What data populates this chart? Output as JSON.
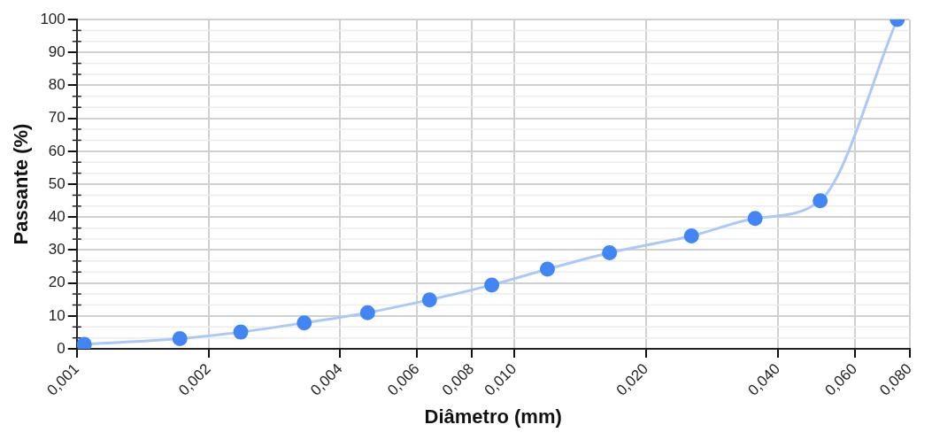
{
  "chart_data": {
    "type": "line",
    "xlabel": "Diâmetro (mm)",
    "ylabel": "Passante (%)",
    "log": "x",
    "x": [
      0.00104,
      0.00172,
      0.00237,
      0.00331,
      0.00462,
      0.0064,
      0.00888,
      0.0119,
      0.0165,
      0.0254,
      0.0355,
      0.05,
      0.075
    ],
    "series": [
      {
        "color": "#4285f4",
        "values": [
          1.4,
          3.1,
          5.1,
          7.9,
          11,
          14.9,
          19.4,
          24.2,
          29.2,
          34.3,
          39.6,
          45,
          100
        ]
      }
    ],
    "xlim": [
      0.001,
      0.08
    ],
    "xticks": [
      {
        "value": 0.001,
        "label": "0,001"
      },
      {
        "value": 0.002,
        "label": "0,002"
      },
      {
        "value": 0.004,
        "label": "0,004"
      },
      {
        "value": 0.006,
        "label": "0,006"
      },
      {
        "value": 0.008,
        "label": "0,008"
      },
      {
        "value": 0.01,
        "label": "0,010"
      },
      {
        "value": 0.02,
        "label": "0,020"
      },
      {
        "value": 0.04,
        "label": "0,040"
      },
      {
        "value": 0.06,
        "label": "0,060"
      },
      {
        "value": 0.08,
        "label": "0,080"
      }
    ],
    "ylim": [
      0,
      100
    ],
    "yticks": [
      0,
      10,
      20,
      30,
      40,
      50,
      60,
      70,
      80,
      90,
      100
    ],
    "grid": true,
    "marker": "circle",
    "line_style": "solid",
    "legend": false
  }
}
